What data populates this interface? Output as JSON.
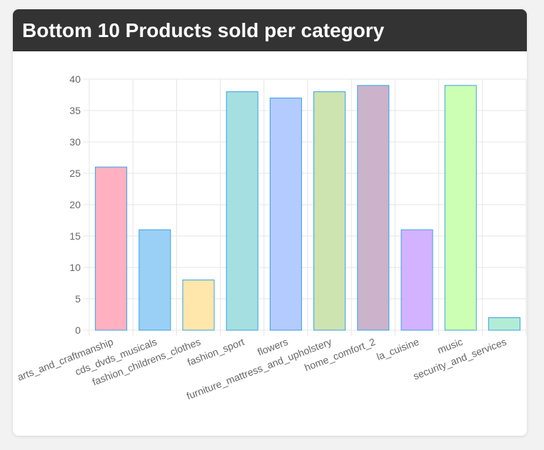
{
  "card": {
    "title": "Bottom 10 Products sold per category"
  },
  "chart_data": {
    "type": "bar",
    "categories": [
      "arts_and_craftmanship",
      "cds_dvds_musicals",
      "fashion_childrens_clothes",
      "fashion_sport",
      "flowers",
      "furniture_mattress_and_upholstery",
      "home_comfort_2",
      "la_cuisine",
      "music",
      "security_and_services"
    ],
    "values": [
      26,
      16,
      8,
      38,
      37,
      38,
      39,
      16,
      39,
      2
    ],
    "ylim": [
      0,
      40
    ],
    "yticks": [
      0,
      5,
      10,
      15,
      20,
      25,
      30,
      35,
      40
    ],
    "grid": true,
    "legend": "none",
    "colors": [
      "#ffb1c1",
      "#9ad0f5",
      "#ffe6aa",
      "#a5dfdf",
      "#b3cbff",
      "#cde3b0",
      "#cab3cb",
      "#d3b3ff",
      "#ccffb3",
      "#b3ecd5"
    ],
    "border_color": "#36a2eb",
    "grid_color": "#e5e5e5"
  }
}
